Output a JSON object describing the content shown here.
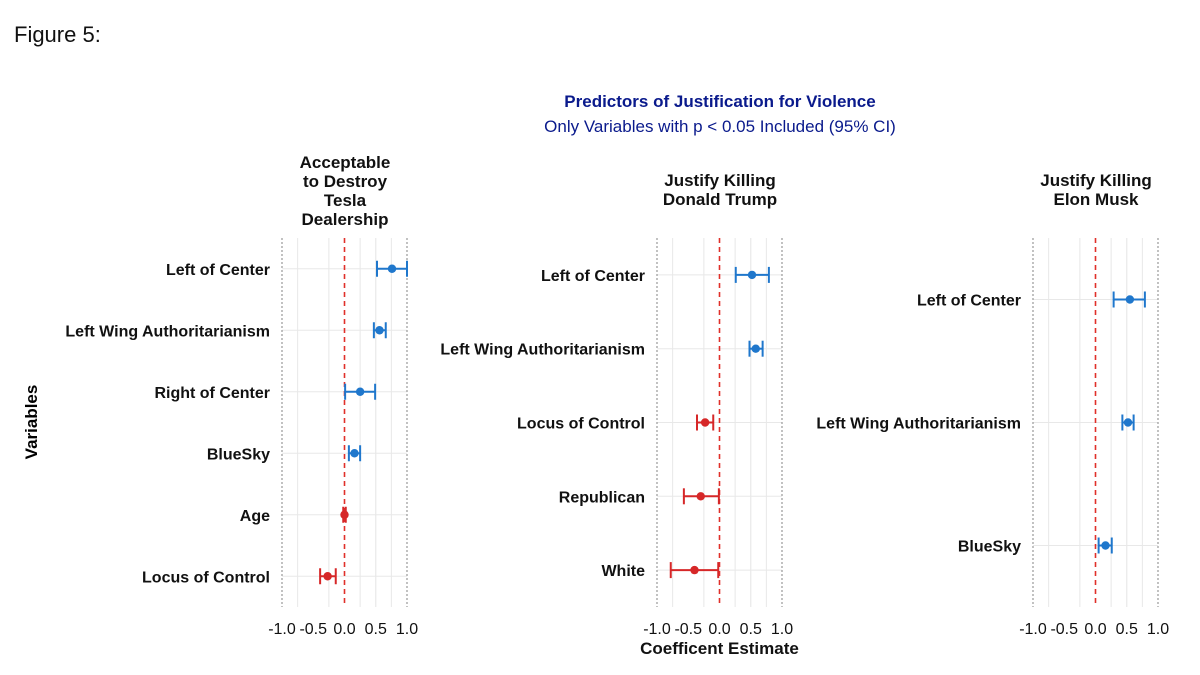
{
  "figure_label": "Figure 5:",
  "colors": {
    "positive": "#1f77cc",
    "negative": "#d62728",
    "title": "#0a1a8c",
    "zero_line": "#e0302a"
  },
  "chart_data": [
    {
      "type": "scatter",
      "title": "Predictors of Justification for Violence",
      "subtitle": "Only Variables with p < 0.05 Included (95% CI)",
      "panel_title": [
        "Acceptable",
        "to Destroy",
        "Tesla",
        "Dealership"
      ],
      "ylabel": "Variables",
      "xlabel": "",
      "xlim": [
        -1.0,
        1.0
      ],
      "x_ticks": [
        "-1.0",
        "-0.5",
        "0.0",
        "0.5",
        "1.0"
      ],
      "grid": true,
      "reference_line": 0,
      "points": [
        {
          "label": "Left of Center",
          "estimate": 0.76,
          "ci": [
            0.52,
            1.0
          ],
          "sign": "positive"
        },
        {
          "label": "Left Wing Authoritarianism",
          "estimate": 0.56,
          "ci": [
            0.47,
            0.66
          ],
          "sign": "positive"
        },
        {
          "label": "Right of Center",
          "estimate": 0.25,
          "ci": [
            0.01,
            0.49
          ],
          "sign": "positive"
        },
        {
          "label": "BlueSky",
          "estimate": 0.16,
          "ci": [
            0.07,
            0.25
          ],
          "sign": "positive"
        },
        {
          "label": "Age",
          "estimate": 0.0,
          "ci": [
            -0.02,
            0.02
          ],
          "sign": "negative"
        },
        {
          "label": "Locus of Control",
          "estimate": -0.27,
          "ci": [
            -0.39,
            -0.14
          ],
          "sign": "negative"
        }
      ]
    },
    {
      "type": "scatter",
      "panel_title": [
        "Justify Killing",
        "Donald Trump"
      ],
      "xlabel": "Coefficent Estimate",
      "xlim": [
        -1.0,
        1.0
      ],
      "x_ticks": [
        "-1.0",
        "-0.5",
        "0.0",
        "0.5",
        "1.0"
      ],
      "grid": true,
      "reference_line": 0,
      "points": [
        {
          "label": "Left of Center",
          "estimate": 0.52,
          "ci": [
            0.26,
            0.79
          ],
          "sign": "positive"
        },
        {
          "label": "Left Wing Authoritarianism",
          "estimate": 0.58,
          "ci": [
            0.48,
            0.69
          ],
          "sign": "positive"
        },
        {
          "label": "Locus of Control",
          "estimate": -0.23,
          "ci": [
            -0.36,
            -0.1
          ],
          "sign": "negative"
        },
        {
          "label": "Republican",
          "estimate": -0.3,
          "ci": [
            -0.57,
            -0.01
          ],
          "sign": "negative"
        },
        {
          "label": "White",
          "estimate": -0.4,
          "ci": [
            -0.78,
            -0.02
          ],
          "sign": "negative"
        }
      ]
    },
    {
      "type": "scatter",
      "panel_title": [
        "Justify Killing",
        "Elon Musk"
      ],
      "xlabel": "",
      "xlim": [
        -1.0,
        1.0
      ],
      "x_ticks": [
        "-1.0",
        "-0.5",
        "0.0",
        "0.5",
        "1.0"
      ],
      "grid": true,
      "reference_line": 0,
      "points": [
        {
          "label": "Left of Center",
          "estimate": 0.55,
          "ci": [
            0.29,
            0.79
          ],
          "sign": "positive"
        },
        {
          "label": "Left Wing Authoritarianism",
          "estimate": 0.52,
          "ci": [
            0.43,
            0.61
          ],
          "sign": "positive"
        },
        {
          "label": "BlueSky",
          "estimate": 0.16,
          "ci": [
            0.05,
            0.26
          ],
          "sign": "positive"
        }
      ]
    }
  ]
}
